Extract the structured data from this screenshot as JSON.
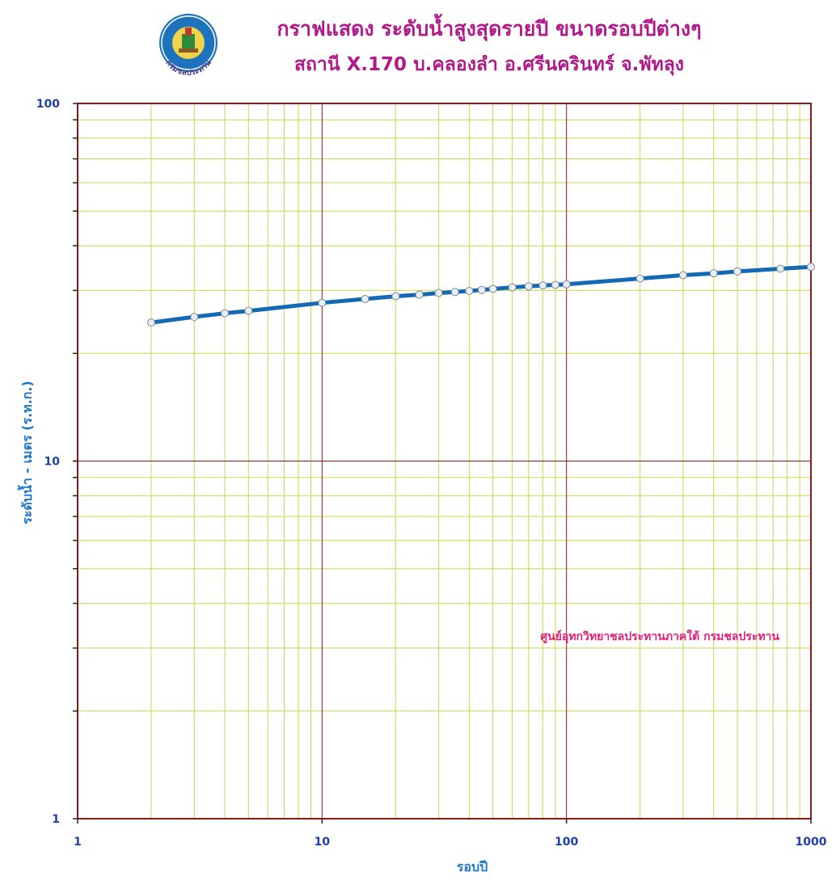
{
  "header": {
    "title_line1": "กราฟแสดง ระดับน้ำสูงสุดรายปี ขนาดรอบปีต่างๆ",
    "title_line2": "สถานี X.170  บ.คลองลำ  อ.ศรีนครินทร์  จ.พัทลุง",
    "logo_text": "กรมชลประทาน"
  },
  "credit": "ศูนย์อุทกวิทยาชลประทานภาคใต้  กรมชลประทาน",
  "colors": {
    "title": "#B0198A",
    "axis_text": "#1E3FA8",
    "axis_title": "#1E78C8",
    "major_grid": "#8B1A1A",
    "minor_grid": "#C8D84A",
    "line": "#1469B4",
    "marker_fill": "#E8EEF4",
    "credit": "#E0207A"
  },
  "chart_data": {
    "type": "line",
    "xscale": "log",
    "yscale": "log",
    "xlim": [
      1,
      1000
    ],
    "ylim": [
      1,
      100
    ],
    "xlabel": "รอบปี",
    "ylabel": "ระดับน้ำ  -  เมตร (ร.ท.ก.)",
    "x_ticks": [
      "1",
      "10",
      "100",
      "1000"
    ],
    "y_ticks": [
      "1",
      "10",
      "100"
    ],
    "grid": true,
    "series": [
      {
        "x": [
          2,
          3,
          4,
          5,
          10,
          15,
          20,
          25,
          30,
          35,
          40,
          45,
          50,
          60,
          70,
          80,
          90,
          100,
          200,
          300,
          400,
          500,
          750,
          1000
        ],
        "y": [
          24.4,
          25.3,
          25.9,
          26.3,
          27.7,
          28.4,
          28.9,
          29.2,
          29.5,
          29.7,
          29.9,
          30.1,
          30.3,
          30.6,
          30.8,
          31.0,
          31.1,
          31.2,
          32.4,
          33.1,
          33.5,
          33.9,
          34.5,
          34.9
        ]
      }
    ]
  }
}
